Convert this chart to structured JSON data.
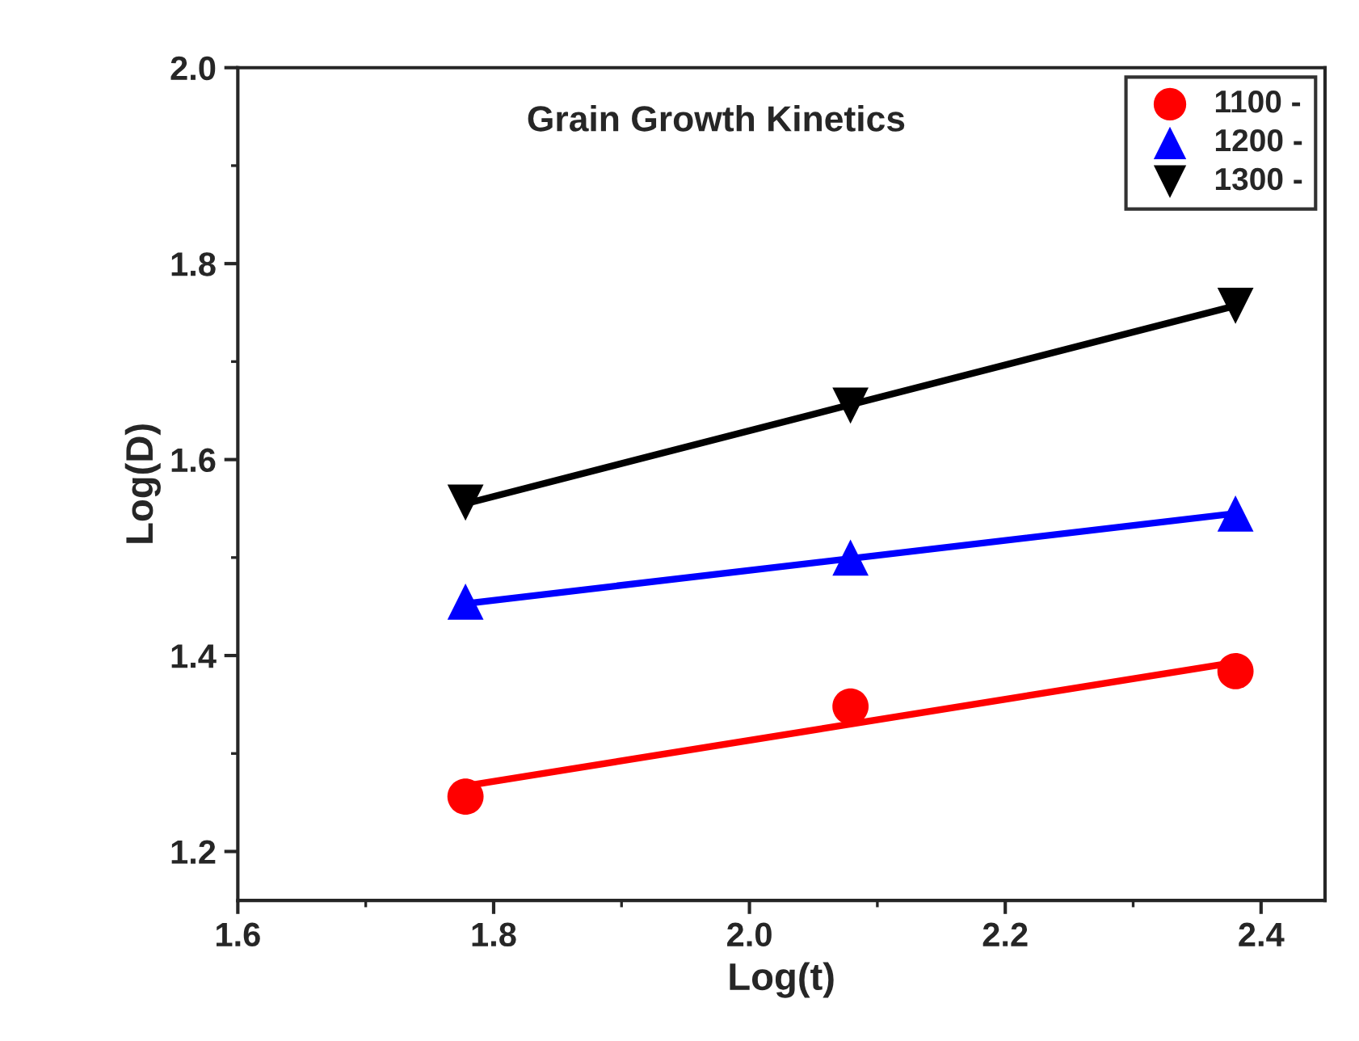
{
  "chart_data": {
    "type": "scatter",
    "title": "Grain Growth Kinetics",
    "xlabel": "Log(t)",
    "ylabel": "Log(D)",
    "xlim": [
      1.6,
      2.45
    ],
    "xticks": [
      1.6,
      1.8,
      {
        "value": 2,
        "label": "2.0"
      },
      2.2,
      2.4
    ],
    "ylim": [
      1.15,
      2.0
    ],
    "yticks": [
      1.2,
      1.4,
      1.6,
      1.8,
      {
        "value": 2,
        "label": "2.0"
      }
    ],
    "grid": false,
    "legend": "top right",
    "series": [
      {
        "name": "1100 -",
        "color": "#ff0000",
        "marker": "circle",
        "x": [
          1.778,
          2.079,
          2.38
        ],
        "values": [
          1.256,
          1.348,
          1.384
        ]
      },
      {
        "name": "1200 -",
        "color": "#0000ff",
        "marker": "triangle",
        "x": [
          1.778,
          2.079,
          2.38
        ],
        "values": [
          1.455,
          1.5,
          1.545
        ]
      },
      {
        "name": "1300 -",
        "color": "#000000",
        "marker": "triangle_down",
        "x": [
          1.778,
          2.079,
          2.38
        ],
        "values": [
          1.556,
          1.655,
          1.757
        ]
      },
      {
        "type": "line",
        "color": "#ff0000",
        "x": [
          1.778,
          2.38
        ],
        "values": [
          1.267,
          1.393
        ]
      },
      {
        "type": "line",
        "color": "#0000ff",
        "x": [
          1.778,
          2.38
        ],
        "values": [
          1.453,
          1.545
        ]
      },
      {
        "type": "line",
        "color": "#000000",
        "x": [
          1.778,
          2.38
        ],
        "values": [
          1.555,
          1.757
        ]
      }
    ]
  }
}
